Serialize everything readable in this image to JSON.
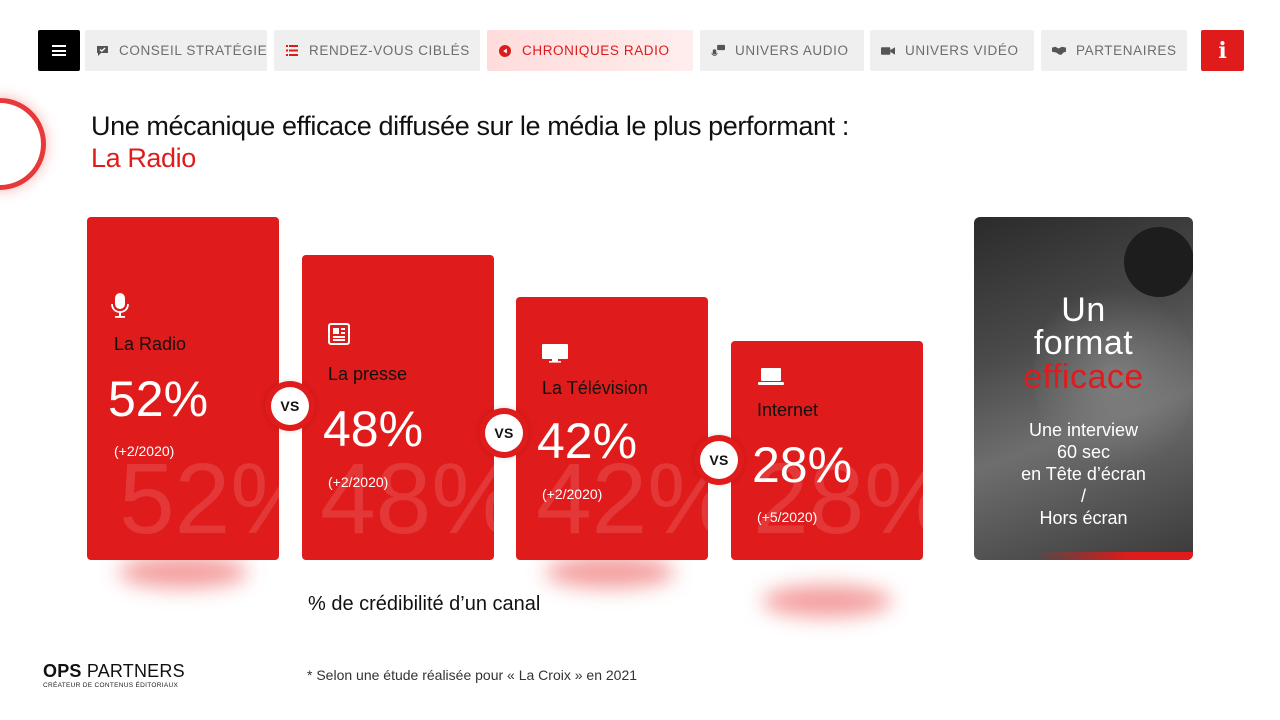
{
  "nav": {
    "menu_icon": "hamburger-icon",
    "tabs": [
      {
        "label": "CONSEIL STRATÉGIE",
        "icon": "comment-check-icon",
        "active": false
      },
      {
        "label": "RENDEZ-VOUS CIBLÉS",
        "icon": "list-icon",
        "active": false
      },
      {
        "label": "CHRONIQUES RADIO",
        "icon": "play-circle-icon",
        "active": true
      },
      {
        "label": "UNIVERS AUDIO",
        "icon": "microphone-chat-icon",
        "active": false
      },
      {
        "label": "UNIVERS VIDÉO",
        "icon": "video-camera-icon",
        "active": false
      },
      {
        "label": "PARTENAIRES",
        "icon": "handshake-icon",
        "active": false
      }
    ],
    "info_label": "i"
  },
  "headline": {
    "line1": "Une mécanique efficace diffusée sur le média le plus performant :",
    "line2": "La Radio"
  },
  "cards": [
    {
      "title": "La Radio",
      "value": "52%",
      "delta": "(+2/2020)",
      "icon": "microphone-icon"
    },
    {
      "title": "La presse",
      "value": "48%",
      "delta": "(+2/2020)",
      "icon": "newspaper-icon"
    },
    {
      "title": "La Télévision",
      "value": "42%",
      "delta": "(+2/2020)",
      "icon": "tv-icon"
    },
    {
      "title": "Internet",
      "value": "28%",
      "delta": "(+5/2020)",
      "icon": "laptop-icon"
    }
  ],
  "vs_label": "VS",
  "format_panel": {
    "line1": "Un",
    "line2": "format",
    "line3": "efficace",
    "sub1": "Une interview",
    "sub2": "60 sec",
    "sub3": "en Tête d’écran",
    "sub4": "/",
    "sub5": "Hors écran"
  },
  "caption": "% de crédibilité d’un canal",
  "footnote": "* Selon une étude réalisée pour « La Croix » en 2021",
  "logo": {
    "brand_bold": "OPS",
    "brand_light": "PARTNERS",
    "tagline": "CRÉATEUR DE CONTENUS ÉDITORIAUX"
  },
  "colors": {
    "accent": "#e01b1b",
    "menu_bg": "#000000",
    "tab_bg": "#efefef"
  }
}
